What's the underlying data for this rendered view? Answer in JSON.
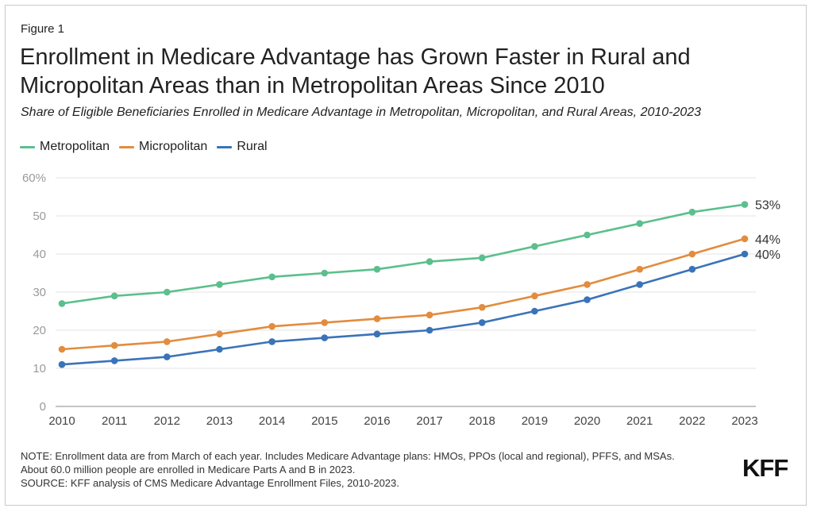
{
  "figure_label": "Figure 1",
  "title_line1": "Enrollment in Medicare Advantage has Grown Faster in Rural and",
  "title_line2": "Micropolitan Areas than in Metropolitan Areas Since 2010",
  "subtitle": "Share of Eligible Beneficiaries Enrolled in Medicare Advantage in Metropolitan, Micropolitan, and Rural Areas, 2010-2023",
  "notes": {
    "line1": "NOTE: Enrollment data are from March of each year. Includes Medicare Advantage plans: HMOs, PPOs (local and regional), PFFS, and MSAs.",
    "line2": "About 60.0 million people are enrolled in Medicare Parts A and B in 2023.",
    "line3": "SOURCE: KFF analysis of CMS Medicare Advantage Enrollment Files, 2010-2023."
  },
  "logo_text": "KFF",
  "chart_data": {
    "type": "line",
    "x": [
      2010,
      2011,
      2012,
      2013,
      2014,
      2015,
      2016,
      2017,
      2018,
      2019,
      2020,
      2021,
      2022,
      2023
    ],
    "ylim": [
      0,
      60
    ],
    "yticks": [
      0,
      10,
      20,
      30,
      40,
      50,
      60
    ],
    "ytick_labels": [
      "0",
      "10",
      "20",
      "30",
      "40",
      "50",
      "60%"
    ],
    "grid": true,
    "legend_position": "top-left",
    "series": [
      {
        "name": "Metropolitan",
        "color": "#5bbf8d",
        "values": [
          27,
          29,
          30,
          32,
          34,
          35,
          36,
          38,
          39,
          42,
          45,
          48,
          51,
          53
        ],
        "end_label": "53%"
      },
      {
        "name": "Micropolitan",
        "color": "#e28c3e",
        "values": [
          15,
          16,
          17,
          19,
          21,
          22,
          23,
          24,
          26,
          29,
          32,
          36,
          40,
          44
        ],
        "end_label": "44%"
      },
      {
        "name": "Rural",
        "color": "#3a73b8",
        "values": [
          11,
          12,
          13,
          15,
          17,
          18,
          19,
          20,
          22,
          25,
          28,
          32,
          36,
          40
        ],
        "end_label": "40%"
      }
    ]
  }
}
